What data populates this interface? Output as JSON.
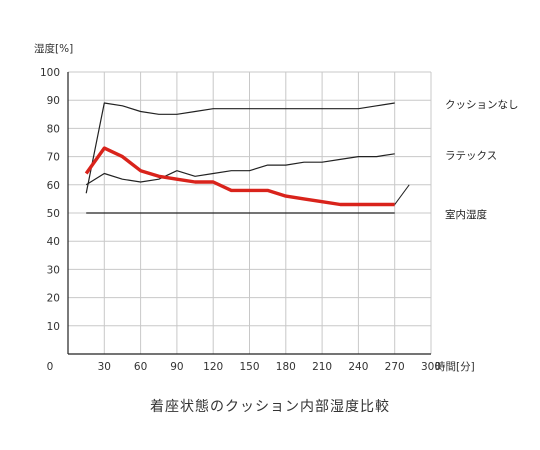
{
  "chart_data": {
    "type": "line",
    "title": "着座状態のクッション内部湿度比較",
    "ylabel": "湿度[%]",
    "xlabel": "時間[分]",
    "xlim": [
      0,
      300
    ],
    "ylim": [
      0,
      100
    ],
    "x_ticks": [
      "0",
      "30",
      "60",
      "90",
      "120",
      "150",
      "180",
      "210",
      "240",
      "270",
      "300"
    ],
    "y_ticks": [
      "10",
      "20",
      "30",
      "40",
      "50",
      "60",
      "70",
      "80",
      "90",
      "100"
    ],
    "grid": true,
    "series": [
      {
        "name": "クッションなし",
        "color": "#222222",
        "emphasis": false,
        "points": [
          [
            15,
            57
          ],
          [
            30,
            89
          ],
          [
            45,
            88
          ],
          [
            60,
            86
          ],
          [
            75,
            85
          ],
          [
            90,
            85
          ],
          [
            105,
            86
          ],
          [
            120,
            87
          ],
          [
            135,
            87
          ],
          [
            150,
            87
          ],
          [
            165,
            87
          ],
          [
            180,
            87
          ],
          [
            195,
            87
          ],
          [
            210,
            87
          ],
          [
            225,
            87
          ],
          [
            240,
            87
          ],
          [
            255,
            88
          ],
          [
            270,
            89
          ]
        ]
      },
      {
        "name": "ラテックス",
        "color": "#222222",
        "emphasis": false,
        "points": [
          [
            15,
            60
          ],
          [
            30,
            64
          ],
          [
            45,
            62
          ],
          [
            60,
            61
          ],
          [
            75,
            62
          ],
          [
            90,
            65
          ],
          [
            105,
            63
          ],
          [
            120,
            64
          ],
          [
            135,
            65
          ],
          [
            150,
            65
          ],
          [
            165,
            67
          ],
          [
            180,
            67
          ],
          [
            195,
            68
          ],
          [
            210,
            68
          ],
          [
            225,
            69
          ],
          [
            240,
            70
          ],
          [
            255,
            70
          ],
          [
            270,
            71
          ]
        ]
      },
      {
        "name": "室内湿度",
        "color": "#222222",
        "emphasis": false,
        "points": [
          [
            15,
            50
          ],
          [
            270,
            50
          ]
        ]
      },
      {
        "name": "",
        "color": "#d9231b",
        "emphasis": true,
        "points": [
          [
            15,
            64
          ],
          [
            30,
            73
          ],
          [
            45,
            70
          ],
          [
            60,
            65
          ],
          [
            75,
            63
          ],
          [
            90,
            62
          ],
          [
            105,
            61
          ],
          [
            120,
            61
          ],
          [
            135,
            58
          ],
          [
            150,
            58
          ],
          [
            165,
            58
          ],
          [
            180,
            56
          ],
          [
            195,
            55
          ],
          [
            210,
            54
          ],
          [
            225,
            53
          ],
          [
            240,
            53
          ],
          [
            255,
            53
          ],
          [
            270,
            53
          ]
        ]
      }
    ],
    "label_leaders": [
      {
        "series": "室内湿度",
        "from": [
          270,
          53
        ],
        "to": [
          282,
          60
        ]
      }
    ]
  }
}
